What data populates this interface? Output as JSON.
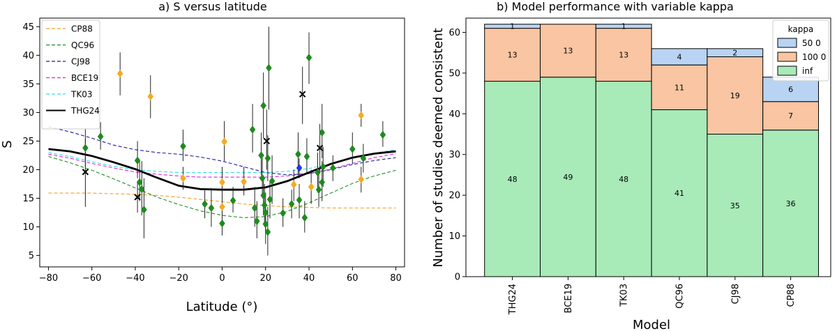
{
  "chart_data": [
    {
      "type": "scatter",
      "title": "a) S versus latitude",
      "xlabel": "Latitude (°)",
      "ylabel": "S",
      "xlim": [
        -84,
        84
      ],
      "ylim": [
        3,
        46.5
      ],
      "xticks": [
        -80,
        -60,
        -40,
        -20,
        0,
        20,
        40,
        60,
        80
      ],
      "yticks": [
        5,
        10,
        15,
        20,
        25,
        30,
        35,
        40,
        45
      ],
      "legend_position": "top-left",
      "series": [
        {
          "name": "CP88",
          "kind": "line",
          "style": "dashed",
          "color": "#f0a020",
          "x": [
            -80,
            -70,
            -60,
            -50,
            -40,
            -30,
            -20,
            -10,
            0,
            10,
            20,
            30,
            40,
            50,
            60,
            70,
            80
          ],
          "y": [
            15.9,
            15.9,
            15.9,
            15.8,
            15.7,
            15.5,
            15.2,
            14.8,
            14.4,
            14.0,
            13.7,
            13.5,
            13.4,
            13.3,
            13.3,
            13.3,
            13.3
          ]
        },
        {
          "name": "QC96",
          "kind": "line",
          "style": "dashed",
          "color": "#228b22",
          "x": [
            -80,
            -70,
            -60,
            -50,
            -40,
            -30,
            -20,
            -10,
            0,
            10,
            20,
            30,
            40,
            50,
            60,
            70,
            80
          ],
          "y": [
            22.3,
            21.2,
            19.9,
            18.4,
            16.8,
            15.2,
            13.9,
            12.8,
            12.0,
            11.6,
            11.8,
            12.7,
            14.2,
            15.9,
            17.6,
            18.9,
            19.9
          ]
        },
        {
          "name": "CJ98",
          "kind": "line",
          "style": "dashed",
          "color": "#1a1aa0",
          "x": [
            -80,
            -70,
            -60,
            -50,
            -40,
            -30,
            -20,
            -10,
            0,
            10,
            20,
            30,
            40,
            50,
            60,
            70,
            80
          ],
          "y": [
            27.5,
            26.6,
            25.5,
            24.3,
            23.5,
            23.0,
            22.7,
            22.2,
            21.5,
            20.5,
            19.5,
            19.1,
            19.3,
            20.0,
            20.9,
            21.6,
            22.1
          ]
        },
        {
          "name": "BCE19",
          "kind": "line",
          "style": "dashed",
          "color": "#e020e0",
          "x": [
            -80,
            -70,
            -60,
            -50,
            -40,
            -30,
            -20,
            -10,
            0,
            10,
            20,
            30,
            40,
            50,
            60,
            70,
            80
          ],
          "y": [
            22.7,
            22.0,
            21.1,
            20.3,
            19.6,
            19.2,
            18.9,
            18.7,
            18.7,
            18.7,
            18.7,
            18.9,
            19.3,
            20.1,
            21.1,
            22.1,
            22.8
          ]
        },
        {
          "name": "TK03",
          "kind": "line",
          "style": "dashed",
          "color": "#30e0e0",
          "x": [
            -80,
            -70,
            -60,
            -50,
            -40,
            -30,
            -20,
            -10,
            0,
            10,
            20,
            30,
            40,
            50,
            60,
            70,
            80
          ],
          "y": [
            23.0,
            22.3,
            21.4,
            20.6,
            20.0,
            19.7,
            19.5,
            19.5,
            19.5,
            19.5,
            19.5,
            19.7,
            20.2,
            21.0,
            22.0,
            22.9,
            23.5
          ]
        },
        {
          "name": "THG24",
          "kind": "line",
          "style": "solid",
          "color": "#000000",
          "x": [
            -80,
            -70,
            -60,
            -50,
            -40,
            -30,
            -20,
            -10,
            0,
            10,
            20,
            30,
            40,
            50,
            60,
            70,
            80
          ],
          "y": [
            23.6,
            23.2,
            22.4,
            21.3,
            20.1,
            18.6,
            17.2,
            16.6,
            16.5,
            16.5,
            16.9,
            18.0,
            19.5,
            21.0,
            22.1,
            22.8,
            23.2
          ]
        }
      ],
      "points": [
        {
          "x": -63,
          "y": 23.8,
          "lo": 20.5,
          "hi": 27.2,
          "c": "green"
        },
        {
          "x": -56,
          "y": 25.8,
          "lo": 23.5,
          "hi": 28.3,
          "c": "green"
        },
        {
          "x": -39,
          "y": 21.6,
          "lo": 18.5,
          "hi": 25.0,
          "c": "green"
        },
        {
          "x": -38,
          "y": 17.8,
          "lo": 14.5,
          "hi": 21.5,
          "c": "green"
        },
        {
          "x": -37,
          "y": 16.6,
          "lo": 12.0,
          "hi": 21.5,
          "c": "green"
        },
        {
          "x": -36,
          "y": 13.0,
          "lo": 8.0,
          "hi": 18.5,
          "c": "green"
        },
        {
          "x": -18,
          "y": 24.1,
          "lo": 21.5,
          "hi": 27.0,
          "c": "green"
        },
        {
          "x": -8,
          "y": 14.0,
          "lo": 11.5,
          "hi": 16.5,
          "c": "green"
        },
        {
          "x": -5,
          "y": 13.3,
          "lo": 10.0,
          "hi": 16.8,
          "c": "green"
        },
        {
          "x": 0,
          "y": 10.6,
          "lo": 8.5,
          "hi": 13.0,
          "c": "green"
        },
        {
          "x": 5,
          "y": 14.6,
          "lo": 12.5,
          "hi": 17.0,
          "c": "green"
        },
        {
          "x": 14,
          "y": 27.0,
          "lo": 23.0,
          "hi": 31.5,
          "c": "green"
        },
        {
          "x": 15,
          "y": 13.3,
          "lo": 10.0,
          "hi": 17.0,
          "c": "green"
        },
        {
          "x": 16,
          "y": 11.0,
          "lo": 8.0,
          "hi": 14.5,
          "c": "green"
        },
        {
          "x": 18,
          "y": 22.5,
          "lo": 19.0,
          "hi": 26.5,
          "c": "green"
        },
        {
          "x": 18.5,
          "y": 18.5,
          "lo": 15.0,
          "hi": 22.0,
          "c": "green"
        },
        {
          "x": 19,
          "y": 31.2,
          "lo": 25.5,
          "hi": 37.0,
          "c": "green"
        },
        {
          "x": 19,
          "y": 15.5,
          "lo": 12.0,
          "hi": 19.0,
          "c": "green"
        },
        {
          "x": 19.5,
          "y": 13.8,
          "lo": 10.0,
          "hi": 17.5,
          "c": "green"
        },
        {
          "x": 20,
          "y": 12.5,
          "lo": 9.0,
          "hi": 16.0,
          "c": "green"
        },
        {
          "x": 20,
          "y": 10.5,
          "lo": 7.0,
          "hi": 14.0,
          "c": "green"
        },
        {
          "x": 21,
          "y": 22.0,
          "lo": 18.0,
          "hi": 26.0,
          "c": "green"
        },
        {
          "x": 21,
          "y": 9.1,
          "lo": 5.0,
          "hi": 13.5,
          "c": "green"
        },
        {
          "x": 21.5,
          "y": 37.8,
          "lo": 30.5,
          "hi": 45.0,
          "c": "green"
        },
        {
          "x": 22,
          "y": 14.8,
          "lo": 11.5,
          "hi": 18.0,
          "c": "green"
        },
        {
          "x": 23,
          "y": 18.0,
          "lo": 14.0,
          "hi": 22.5,
          "c": "green"
        },
        {
          "x": 28,
          "y": 12.4,
          "lo": 10.0,
          "hi": 15.0,
          "c": "green"
        },
        {
          "x": 32,
          "y": 14.0,
          "lo": 11.5,
          "hi": 16.5,
          "c": "green"
        },
        {
          "x": 35,
          "y": 22.7,
          "lo": 19.0,
          "hi": 26.5,
          "c": "green"
        },
        {
          "x": 35.5,
          "y": 14.7,
          "lo": 11.5,
          "hi": 17.5,
          "c": "green"
        },
        {
          "x": 38,
          "y": 11.6,
          "lo": 9.0,
          "hi": 14.5,
          "c": "green"
        },
        {
          "x": 40,
          "y": 39.6,
          "lo": 35.0,
          "hi": 44.0,
          "c": "green"
        },
        {
          "x": 39,
          "y": 22.3,
          "lo": 19.5,
          "hi": 25.5,
          "c": "green"
        },
        {
          "x": 44,
          "y": 19.5,
          "lo": 16.0,
          "hi": 23.0,
          "c": "green"
        },
        {
          "x": 44.5,
          "y": 16.5,
          "lo": 13.5,
          "hi": 20.0,
          "c": "green"
        },
        {
          "x": 46,
          "y": 26.5,
          "lo": 22.0,
          "hi": 31.5,
          "c": "green"
        },
        {
          "x": 46,
          "y": 17.8,
          "lo": 14.5,
          "hi": 21.5,
          "c": "green"
        },
        {
          "x": 46.5,
          "y": 20.5,
          "lo": 17.0,
          "hi": 24.0,
          "c": "green"
        },
        {
          "x": 51,
          "y": 20.3,
          "lo": 18.0,
          "hi": 22.5,
          "c": "green"
        },
        {
          "x": 60,
          "y": 23.6,
          "lo": 21.0,
          "hi": 26.5,
          "c": "green"
        },
        {
          "x": 65,
          "y": 22.0,
          "lo": 19.5,
          "hi": 24.5,
          "c": "green"
        },
        {
          "x": 74,
          "y": 26.1,
          "lo": 24.0,
          "hi": 28.5,
          "c": "green"
        },
        {
          "x": -47,
          "y": 36.8,
          "lo": 33.0,
          "hi": 40.5,
          "c": "orange"
        },
        {
          "x": -33,
          "y": 32.8,
          "lo": 29.0,
          "hi": 36.5,
          "c": "orange"
        },
        {
          "x": -18,
          "y": 18.5,
          "lo": 16.5,
          "hi": 20.5,
          "c": "orange"
        },
        {
          "x": 0,
          "y": 17.8,
          "lo": 15.0,
          "hi": 20.5,
          "c": "orange"
        },
        {
          "x": 0,
          "y": 13.5,
          "lo": 11.5,
          "hi": 15.5,
          "c": "orange"
        },
        {
          "x": 1,
          "y": 24.9,
          "lo": 21.5,
          "hi": 28.5,
          "c": "orange"
        },
        {
          "x": 10,
          "y": 17.9,
          "lo": 15.5,
          "hi": 20.5,
          "c": "orange"
        },
        {
          "x": 33,
          "y": 17.4,
          "lo": 14.5,
          "hi": 20.0,
          "c": "orange"
        },
        {
          "x": 41,
          "y": 17.0,
          "lo": 14.0,
          "hi": 20.0,
          "c": "orange"
        },
        {
          "x": 64,
          "y": 29.5,
          "lo": 27.5,
          "hi": 31.5,
          "c": "orange"
        },
        {
          "x": 64,
          "y": 18.3,
          "lo": 16.0,
          "hi": 20.5,
          "c": "orange"
        },
        {
          "x": 35.5,
          "y": 20.3,
          "lo": 18.5,
          "hi": 22.0,
          "c": "blue"
        },
        {
          "x": -63,
          "y": 19.6,
          "lo": 13.5,
          "hi": 25.5,
          "c": "black"
        },
        {
          "x": -39,
          "y": 15.2,
          "lo": 12.5,
          "hi": 18.0,
          "c": "black"
        },
        {
          "x": 20.5,
          "y": 25.0,
          "lo": 20.0,
          "hi": 30.5,
          "c": "black"
        },
        {
          "x": 37,
          "y": 33.2,
          "lo": 28.0,
          "hi": 38.0,
          "c": "black"
        },
        {
          "x": 45,
          "y": 23.8,
          "lo": 19.5,
          "hi": 28.0,
          "c": "black"
        }
      ]
    },
    {
      "type": "bar",
      "stacked": true,
      "title": "b) Model performance with variable kappa",
      "xlabel": "Model",
      "ylabel": "Number of studies deemed consistent",
      "ylim": [
        0,
        63.5
      ],
      "yticks": [
        0,
        10,
        20,
        30,
        40,
        50,
        60
      ],
      "categories": [
        "THG24",
        "BCE19",
        "TK03",
        "QC96",
        "CJ98",
        "CP88"
      ],
      "legend_title": "kappa",
      "legend_position": "top-right",
      "series": [
        {
          "name": "inf",
          "color": "#a8eab8",
          "values": [
            48,
            49,
            48,
            41,
            35,
            36
          ]
        },
        {
          "name": "100 0",
          "color": "#f9c5a2",
          "values": [
            13,
            13,
            13,
            11,
            19,
            7
          ]
        },
        {
          "name": "50 0",
          "color": "#b8d4f2",
          "values": [
            1,
            0,
            1,
            4,
            2,
            6
          ]
        }
      ]
    }
  ],
  "colors": {
    "green": "#1f8a1f",
    "orange": "#f4aa22",
    "blue": "#1f3bdc",
    "black": "#000000"
  }
}
